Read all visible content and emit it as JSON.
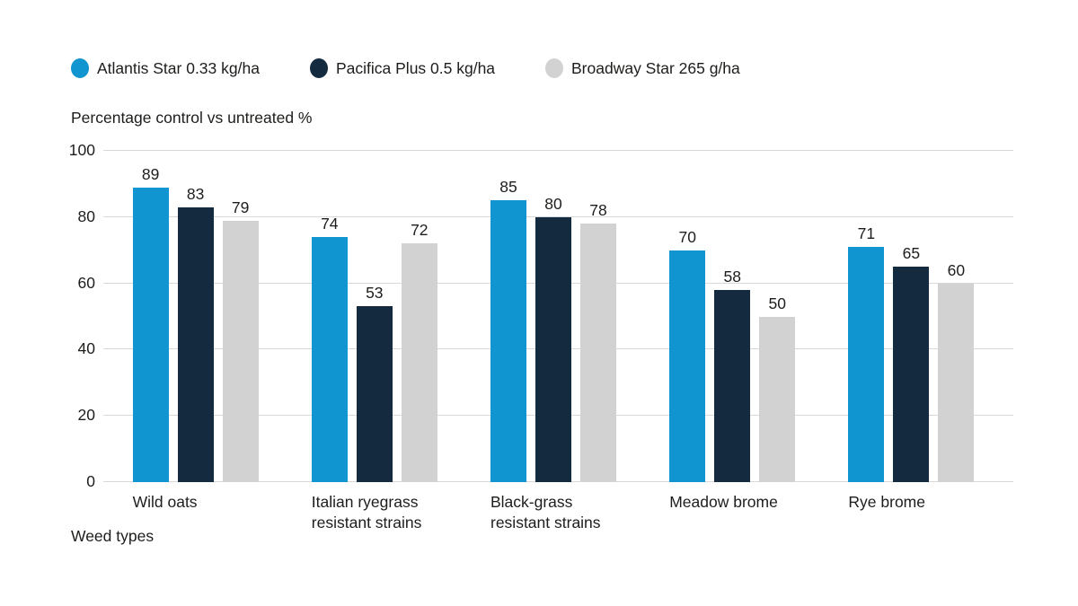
{
  "chart_data": {
    "type": "bar",
    "title": "Percentage control vs untreated %",
    "xlabel": "Weed types",
    "categories": [
      "Wild oats",
      "Italian ryegrass\nresistant strains",
      "Black-grass\nresistant strains",
      "Meadow brome",
      "Rye brome"
    ],
    "series": [
      {
        "name": "Atlantis Star 0.33 kg/ha",
        "color": "#1095d0",
        "values": [
          89,
          74,
          85,
          70,
          71
        ]
      },
      {
        "name": "Pacifica Plus 0.5 kg/ha",
        "color": "#142b3f",
        "values": [
          83,
          53,
          80,
          58,
          65
        ]
      },
      {
        "name": "Broadway Star 265 g/ha",
        "color": "#d2d2d2",
        "values": [
          79,
          72,
          78,
          50,
          60
        ]
      }
    ],
    "y_ticks": [
      100,
      80,
      60,
      40,
      20,
      0
    ],
    "ylim": [
      0,
      100
    ],
    "grid": "horizontal",
    "legend_position": "top"
  },
  "colors": {
    "background": "#ffffff",
    "gridline": "#d8d8d8",
    "text": "#1d1d1b"
  }
}
